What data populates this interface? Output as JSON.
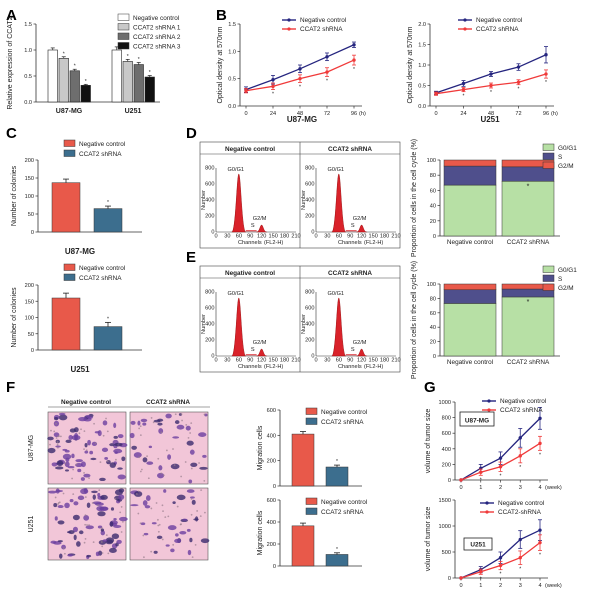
{
  "colors": {
    "red": "#E8594A",
    "blue": "#3C6E8E",
    "navy": "#25257F",
    "bright_red": "#F03A3A",
    "cc_green": "#B7E0A5",
    "cc_purple": "#4F4F8C",
    "cc_red": "#E8594A",
    "white_bar": "#FFFFFF",
    "gray_light": "#C8C8C8",
    "gray_dark": "#6E6E6E",
    "black_bar": "#111111"
  },
  "panels": {
    "A": "A",
    "B": "B",
    "C": "C",
    "D": "D",
    "E": "E",
    "F": "F",
    "G": "G"
  },
  "chart_data": [
    {
      "id": "A",
      "type": "bar",
      "ylabel": "Relative expression of CCAT2",
      "ylim": [
        0,
        1.5
      ],
      "yticks": [
        "0.0",
        "0.5",
        "1.0",
        "1.5"
      ],
      "groups": [
        "U87-MG",
        "U251"
      ],
      "series": [
        {
          "name": "Negative control",
          "values": [
            1.0,
            1.0
          ],
          "errors": [
            0.04,
            0.06
          ]
        },
        {
          "name": "CCAT2 shRNA 1",
          "values": [
            0.84,
            0.78
          ],
          "errors": [
            0.03,
            0.04
          ]
        },
        {
          "name": "CCAT2 shRNA 2",
          "values": [
            0.6,
            0.72
          ],
          "errors": [
            0.03,
            0.04
          ]
        },
        {
          "name": "CCAT2 shRNA 3",
          "values": [
            0.32,
            0.48
          ],
          "errors": [
            0.02,
            0.03
          ]
        }
      ],
      "sig_marker": "*"
    },
    {
      "id": "B1",
      "type": "line",
      "ylabel": "Optical density at 570nm",
      "xlabel": "U87-MG",
      "x": [
        0,
        24,
        48,
        72,
        96
      ],
      "xunit": "(h)",
      "ylim": [
        0,
        1.5
      ],
      "yticks": [
        "0.0",
        "0.5",
        "1.0",
        "1.5"
      ],
      "series": [
        {
          "name": "Negative control",
          "values": [
            0.3,
            0.48,
            0.68,
            0.9,
            1.12
          ],
          "errors": [
            0.05,
            0.08,
            0.07,
            0.07,
            0.05
          ]
        },
        {
          "name": "CCAT2 shRNA",
          "values": [
            0.28,
            0.36,
            0.5,
            0.62,
            0.84
          ],
          "errors": [
            0.04,
            0.06,
            0.07,
            0.08,
            0.09
          ]
        }
      ],
      "sig_marker": "*"
    },
    {
      "id": "B2",
      "type": "line",
      "ylabel": "Optical density at 570nm",
      "xlabel": "U251",
      "x": [
        0,
        24,
        48,
        72,
        96
      ],
      "xunit": "(h)",
      "ylim": [
        0,
        2.0
      ],
      "yticks": [
        "0.0",
        "0.5",
        "1.0",
        "1.5",
        "2.0"
      ],
      "series": [
        {
          "name": "Negative control",
          "values": [
            0.32,
            0.55,
            0.78,
            0.95,
            1.25
          ],
          "errors": [
            0.04,
            0.07,
            0.06,
            0.08,
            0.2
          ]
        },
        {
          "name": "CCAT2 shRNA",
          "values": [
            0.3,
            0.4,
            0.5,
            0.58,
            0.78
          ],
          "errors": [
            0.04,
            0.05,
            0.06,
            0.06,
            0.1
          ]
        }
      ],
      "sig_marker": "*"
    },
    {
      "id": "C1",
      "type": "bar",
      "ylabel": "Number of colonies",
      "xlabel": "U87-MG",
      "ylim": [
        0,
        200
      ],
      "yticks": [
        "0",
        "50",
        "100",
        "150",
        "200"
      ],
      "series": [
        {
          "name": "Negative control",
          "values": [
            137
          ],
          "errors": [
            10
          ]
        },
        {
          "name": "CCAT2 shRNA",
          "values": [
            65
          ],
          "errors": [
            7
          ]
        }
      ],
      "sig_marker": "*"
    },
    {
      "id": "C2",
      "type": "bar",
      "ylabel": "Number of colonies",
      "xlabel": "U251",
      "ylim": [
        0,
        200
      ],
      "yticks": [
        "0",
        "50",
        "100",
        "150",
        "200"
      ],
      "series": [
        {
          "name": "Negative control",
          "values": [
            160
          ],
          "errors": [
            15
          ]
        },
        {
          "name": "CCAT2 shRNA",
          "values": [
            72
          ],
          "errors": [
            13
          ]
        }
      ],
      "sig_marker": "*"
    },
    {
      "id": "D_flow",
      "type": "histogram",
      "titles": [
        "Negative control",
        "CCAT2 shRNA"
      ],
      "ylabel": "Number",
      "xlabel": "Channels",
      "xlabel2": "(FL2-H)",
      "xticks": [
        "0",
        "30",
        "60",
        "90",
        "120",
        "150",
        "180",
        "210"
      ],
      "yticks": [
        "0",
        "200",
        "400",
        "600",
        "800"
      ],
      "peaks": [
        "G0/G1",
        "S",
        "G2/M"
      ]
    },
    {
      "id": "D_bar",
      "type": "bar",
      "stacked": true,
      "ylabel": "Proportion of cells in the cell cycle (%)",
      "categories": [
        "Negative control",
        "CCAT2 shRNA"
      ],
      "ylim": [
        0,
        100
      ],
      "yticks": [
        "0",
        "20",
        "40",
        "60",
        "80",
        "100"
      ],
      "series": [
        {
          "name": "G0/G1",
          "values": [
            67,
            72
          ]
        },
        {
          "name": "S",
          "values": [
            25,
            19
          ]
        },
        {
          "name": "G2/M",
          "values": [
            8,
            9
          ]
        }
      ],
      "sig_marker": "*"
    },
    {
      "id": "E_flow",
      "type": "histogram",
      "titles": [
        "Negative control",
        "CCAT2 shRNA"
      ],
      "ylabel": "Number",
      "xlabel": "Channels",
      "xlabel2": "(FL2-H)",
      "xticks": [
        "0",
        "30",
        "60",
        "90",
        "120",
        "150",
        "180",
        "210"
      ],
      "yticks": [
        "0",
        "200",
        "400",
        "600",
        "800"
      ],
      "peaks": [
        "G0/G1",
        "S",
        "G2/M"
      ]
    },
    {
      "id": "E_bar",
      "type": "bar",
      "stacked": true,
      "ylabel": "Proportion of cells in the cell cycle (%)",
      "categories": [
        "Negative control",
        "CCAT2 shRNA"
      ],
      "ylim": [
        0,
        100
      ],
      "yticks": [
        "0",
        "20",
        "40",
        "60",
        "80",
        "100"
      ],
      "series": [
        {
          "name": "G0/G1",
          "values": [
            73,
            82
          ]
        },
        {
          "name": "S",
          "values": [
            19,
            11
          ]
        },
        {
          "name": "G2/M",
          "values": [
            8,
            7
          ]
        }
      ],
      "sig_marker": "*"
    },
    {
      "id": "F_images",
      "type": "image",
      "columns": [
        "Negative control",
        "CCAT2 shRNA"
      ],
      "rows": [
        "U87-MG",
        "U251"
      ]
    },
    {
      "id": "F1",
      "type": "bar",
      "ylabel": "Migration cells",
      "ylim": [
        0,
        600
      ],
      "yticks": [
        "0",
        "200",
        "400",
        "600"
      ],
      "series": [
        {
          "name": "Negative control",
          "values": [
            410
          ],
          "errors": [
            20
          ]
        },
        {
          "name": "CCAT2 shRNA",
          "values": [
            150
          ],
          "errors": [
            15
          ]
        }
      ],
      "sig_marker": "*"
    },
    {
      "id": "F2",
      "type": "bar",
      "ylabel": "Migration cells",
      "ylim": [
        0,
        600
      ],
      "yticks": [
        "0",
        "200",
        "400",
        "600"
      ],
      "series": [
        {
          "name": "Negative control",
          "values": [
            365
          ],
          "errors": [
            25
          ]
        },
        {
          "name": "CCAT2 shRNA",
          "values": [
            105
          ],
          "errors": [
            15
          ]
        }
      ],
      "sig_marker": "*"
    },
    {
      "id": "G1",
      "type": "line",
      "ylabel": "volume of tumor size",
      "box_label": "U87-MG",
      "x": [
        0,
        1,
        2,
        3,
        4
      ],
      "xunit": "(week)",
      "ylim": [
        0,
        1000
      ],
      "yticks": [
        "0",
        "200",
        "400",
        "600",
        "800",
        "1000"
      ],
      "series": [
        {
          "name": "Negative control",
          "values": [
            0,
            150,
            280,
            540,
            790
          ],
          "errors": [
            0,
            50,
            80,
            120,
            140
          ]
        },
        {
          "name": "CCAT2 shRNA",
          "values": [
            0,
            100,
            170,
            310,
            470
          ],
          "errors": [
            0,
            40,
            60,
            90,
            90
          ]
        }
      ],
      "sig_marker": "*"
    },
    {
      "id": "G2",
      "type": "line",
      "ylabel": "volume of tumor size",
      "box_label": "U251",
      "x": [
        0,
        1,
        2,
        3,
        4
      ],
      "xunit": "(week)",
      "ylim": [
        0,
        1500
      ],
      "yticks": [
        "0",
        "500",
        "1000",
        "1500"
      ],
      "series": [
        {
          "name": "Negative control",
          "values": [
            0,
            160,
            390,
            740,
            920
          ],
          "errors": [
            0,
            60,
            110,
            170,
            200
          ]
        },
        {
          "name": "CCAT2-shRNA",
          "values": [
            0,
            120,
            240,
            390,
            680
          ],
          "errors": [
            0,
            50,
            80,
            130,
            150
          ]
        }
      ],
      "sig_marker": "*"
    }
  ]
}
